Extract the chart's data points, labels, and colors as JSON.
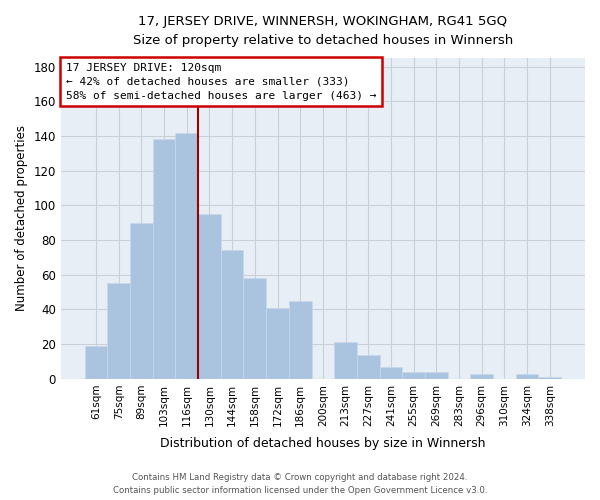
{
  "title_line1": "17, JERSEY DRIVE, WINNERSH, WOKINGHAM, RG41 5GQ",
  "title_line2": "Size of property relative to detached houses in Winnersh",
  "xlabel": "Distribution of detached houses by size in Winnersh",
  "ylabel": "Number of detached properties",
  "bar_labels": [
    "61sqm",
    "75sqm",
    "89sqm",
    "103sqm",
    "116sqm",
    "130sqm",
    "144sqm",
    "158sqm",
    "172sqm",
    "186sqm",
    "200sqm",
    "213sqm",
    "227sqm",
    "241sqm",
    "255sqm",
    "269sqm",
    "283sqm",
    "296sqm",
    "310sqm",
    "324sqm",
    "338sqm"
  ],
  "bar_values": [
    19,
    55,
    90,
    138,
    142,
    95,
    74,
    58,
    41,
    45,
    0,
    21,
    14,
    7,
    4,
    4,
    0,
    3,
    0,
    3,
    1
  ],
  "bar_color": "#aac4e0",
  "bar_edge_color": "#c8d8ea",
  "vline_bin_index": 4,
  "annotation_line1": "17 JERSEY DRIVE: 120sqm",
  "annotation_line2": "← 42% of detached houses are smaller (333)",
  "annotation_line3": "58% of semi-detached houses are larger (463) →",
  "annotation_box_edge_color": "#cc0000",
  "annotation_box_face_color": "#ffffff",
  "vline_color": "#990000",
  "ylim": [
    0,
    185
  ],
  "yticks": [
    0,
    20,
    40,
    60,
    80,
    100,
    120,
    140,
    160,
    180
  ],
  "footer_line1": "Contains HM Land Registry data © Crown copyright and database right 2024.",
  "footer_line2": "Contains public sector information licensed under the Open Government Licence v3.0.",
  "background_color": "#ffffff",
  "plot_bg_color": "#e8eef5",
  "grid_color": "#c8d0d8"
}
